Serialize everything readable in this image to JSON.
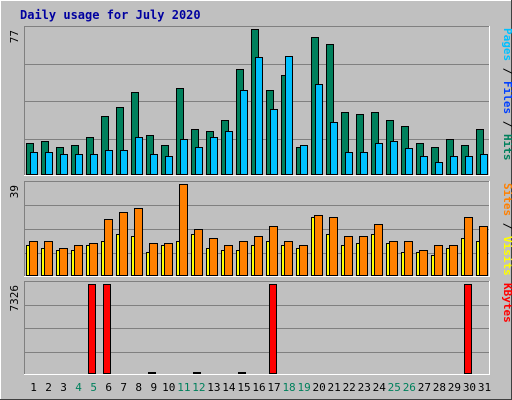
{
  "chart_data": {
    "type": "bar",
    "title": "Daily usage for July 2020",
    "days": [
      "1",
      "2",
      "3",
      "4",
      "5",
      "6",
      "7",
      "8",
      "9",
      "10",
      "11",
      "12",
      "13",
      "14",
      "15",
      "16",
      "17",
      "18",
      "19",
      "20",
      "21",
      "22",
      "23",
      "24",
      "25",
      "26",
      "27",
      "28",
      "29",
      "30",
      "31"
    ],
    "weekend_days": [
      "4",
      "5",
      "11",
      "12",
      "18",
      "19",
      "25",
      "26"
    ],
    "panels": [
      {
        "id": "pfh",
        "tick_label": "77",
        "ylim": [
          0,
          77
        ],
        "legend": [
          {
            "text": "Pages",
            "color": "#00c0ff"
          },
          {
            "text": " / ",
            "color": "#000000"
          },
          {
            "text": "Files",
            "color": "#0040ff"
          },
          {
            "text": " / ",
            "color": "#000000"
          },
          {
            "text": "Hits",
            "color": "#00805c"
          }
        ],
        "series": [
          {
            "name": "Hits",
            "color": "#00805c",
            "values": [
              17,
              18,
              15,
              16,
              20,
              31,
              36,
              44,
              21,
              16,
              46,
              24,
              23,
              29,
              56,
              77,
              45,
              53,
              15,
              73,
              69,
              33,
              32,
              33,
              29,
              26,
              17,
              15,
              19,
              16,
              24
            ]
          },
          {
            "name": "Files",
            "color": "#0040ff",
            "values": [
              0,
              0,
              0,
              0,
              0,
              0,
              0,
              0,
              0,
              0,
              0,
              0,
              0,
              0,
              0,
              0,
              0,
              0,
              0,
              0,
              0,
              0,
              0,
              0,
              0,
              0,
              0,
              0,
              0,
              0,
              0
            ]
          },
          {
            "name": "Pages",
            "color": "#00c0ff",
            "values": [
              12,
              12,
              11,
              11,
              11,
              13,
              13,
              20,
              11,
              10,
              19,
              15,
              20,
              23,
              45,
              62,
              35,
              63,
              16,
              48,
              28,
              12,
              12,
              17,
              18,
              14,
              10,
              7,
              10,
              10,
              11
            ]
          }
        ]
      },
      {
        "id": "vs",
        "tick_label": "39",
        "ylim": [
          0,
          39
        ],
        "legend": [
          {
            "text": "Sites",
            "color": "#ff8000"
          },
          {
            "text": " / ",
            "color": "#000000"
          },
          {
            "text": "Visits",
            "color": "#ffff00"
          }
        ],
        "series": [
          {
            "name": "Visits",
            "color": "#ffff00",
            "values": [
              13,
              12,
              11,
              11,
              13,
              15,
              18,
              17,
              10,
              13,
              15,
              18,
              12,
              11,
              11,
              13,
              15,
              13,
              12,
              25,
              18,
              13,
              14,
              18,
              14,
              10,
              10,
              9,
              12,
              16,
              15
            ]
          },
          {
            "name": "Sites",
            "color": "#ff8000",
            "values": [
              15,
              15,
              12,
              13,
              14,
              24,
              27,
              29,
              14,
              14,
              39,
              20,
              16,
              13,
              15,
              17,
              21,
              15,
              13,
              26,
              25,
              17,
              17,
              22,
              15,
              15,
              11,
              13,
              13,
              25,
              21
            ]
          }
        ]
      },
      {
        "id": "kb",
        "tick_label": "7326",
        "ylim": [
          0,
          7326
        ],
        "legend": [
          {
            "text": "KBytes",
            "color": "#ff0000"
          }
        ],
        "series": [
          {
            "name": "KBytes",
            "color": "#ff0000",
            "values": [
              50,
              50,
              50,
              50,
              7326,
              7326,
              50,
              50,
              150,
              50,
              50,
              150,
              50,
              50,
              150,
              50,
              7326,
              50,
              50,
              50,
              50,
              50,
              50,
              50,
              50,
              50,
              50,
              50,
              50,
              7326,
              50
            ]
          }
        ]
      }
    ],
    "grid": true
  }
}
